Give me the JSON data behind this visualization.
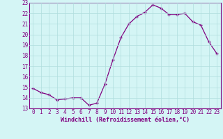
{
  "hours": [
    0,
    1,
    2,
    3,
    4,
    5,
    6,
    7,
    8,
    9,
    10,
    11,
    12,
    13,
    14,
    15,
    16,
    17,
    18,
    19,
    20,
    21,
    22,
    23
  ],
  "values": [
    14.9,
    14.5,
    14.3,
    13.8,
    13.9,
    14.0,
    14.0,
    13.3,
    13.5,
    15.3,
    17.6,
    19.7,
    21.0,
    21.7,
    22.1,
    22.8,
    22.5,
    21.9,
    21.9,
    22.0,
    21.2,
    20.9,
    19.3,
    18.2
  ],
  "line_color": "#800080",
  "marker": "+",
  "bg_color": "#d4f5f5",
  "grid_color": "#b0dede",
  "xlabel": "Windchill (Refroidissement éolien,°C)",
  "ylim_min": 13,
  "ylim_max": 23,
  "yticks": [
    13,
    14,
    15,
    16,
    17,
    18,
    19,
    20,
    21,
    22,
    23
  ],
  "xticks": [
    0,
    1,
    2,
    3,
    4,
    5,
    6,
    7,
    8,
    9,
    10,
    11,
    12,
    13,
    14,
    15,
    16,
    17,
    18,
    19,
    20,
    21,
    22,
    23
  ],
  "tick_label_fontsize": 5.5,
  "xlabel_fontsize": 6.0,
  "axis_color": "#800080",
  "tick_color": "#800080",
  "spine_color": "#800080"
}
